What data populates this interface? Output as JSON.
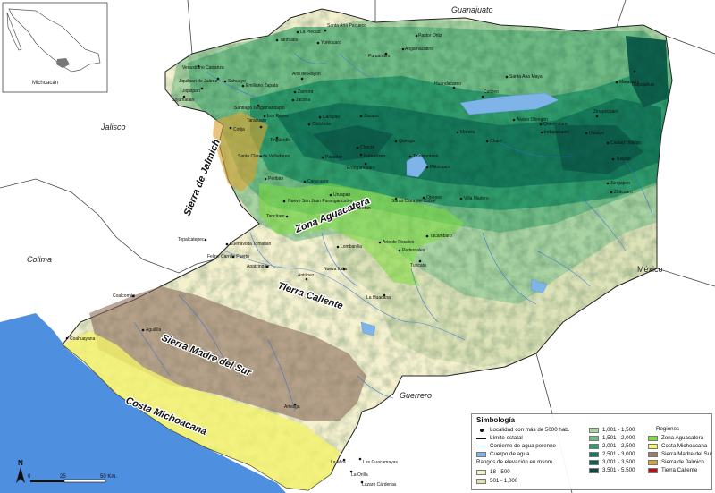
{
  "inset": {
    "label": "Michoacán"
  },
  "states": {
    "guanajuato": "Guanajuato",
    "jalisco": "Jalisco",
    "colima": "Colima",
    "guerrero": "Guerrero",
    "mexico": "México"
  },
  "regions": {
    "jalmich": "Sierra de Jalmich",
    "aguacatera": "Zona Aguacatera",
    "tierra_caliente": "Tierra Caliente",
    "madre_sur": "Sierra Madre del Sur",
    "costa": "Costa Michoacana"
  },
  "towns": [
    "La Piedad",
    "Santa Ana Pacueco",
    "Pastor Ortiz",
    "Tanhuato",
    "Yurécuaro",
    "Angamacutiro",
    "Venustiano Carranza",
    "Jiquilpan de Juárez",
    "Sahuayo",
    "Jiquilpan",
    "Cojumatlán",
    "Puruándiro",
    "Maravatío",
    "Tlalpujahua",
    "Emiliano Zapata",
    "Ario de Rayón",
    "Zamora",
    "Jacona",
    "Santiago Tangamandapio",
    "Los Reyes",
    "Tingüindín",
    "Taracuato",
    "Cotija",
    "Carapan",
    "Chilchota",
    "Zacapu",
    "Cuitzeo",
    "Santa Ana Maya",
    "Huandacareo",
    "Morelia",
    "Quiroga",
    "Álvaro Obregón",
    "Queréndaro",
    "Indaparapeo",
    "Hidalgo",
    "Zinapécuaro",
    "Ciudad Hidalgo",
    "Tuxpan",
    "Zitácuaro",
    "Jungapeo",
    "Charo",
    "Santa Clara de Valladares",
    "Paracho",
    "Cherán",
    "Nahuatzen",
    "Pátzcuaro",
    "Tzintzuntzan",
    "Erongarícuaro",
    "Peribán",
    "Caracuaro",
    "Nuevo San Juan Parangaricutiro",
    "Uruapan",
    "Taretan",
    "Santa Clara del Cobre",
    "Opopeo",
    "Villa Madero",
    "Tancítaro",
    "Ario de Rosales",
    "Tacámbaro",
    "Turicato",
    "Pedernales",
    "Tepalcatepec",
    "Buenavista Tomatlán",
    "Felipe Carrillo Puerto",
    "Apatzingán",
    "Lombardía",
    "Nueva Italia",
    "Antúnez",
    "La Huacana",
    "Coalcomán",
    "Aguililla",
    "Coahuayana",
    "Arteaga",
    "La Mira",
    "Las Guacamayas",
    "La Orilla",
    "Lázaro Cárdenas"
  ],
  "legend": {
    "title": "Simbología",
    "symbols": [
      "Localidad con más de 5000 hab.",
      "Límite estatal",
      "Corriente de agua perenne",
      "Cuerpo de agua"
    ],
    "elev_title": "Rangos de elevación en msnm",
    "elevation_ranges": [
      {
        "label": "18 - 500",
        "color": "#f5f1cf"
      },
      {
        "label": "501 - 1,000",
        "color": "#dde2b8"
      },
      {
        "label": "1,001 - 1,500",
        "color": "#a9d3a3"
      },
      {
        "label": "1,501 - 2,000",
        "color": "#6fba85"
      },
      {
        "label": "2,001 - 2,500",
        "color": "#2f9a6b"
      },
      {
        "label": "2,501 - 3,000",
        "color": "#16785a"
      },
      {
        "label": "3,001 - 3,500",
        "color": "#0e5e4c"
      },
      {
        "label": "3,501 - 5,500",
        "color": "#0a4a43"
      }
    ],
    "regions_title": "Regiones",
    "regions": [
      {
        "label": "Zona Aguacatera",
        "color": "#7ddc3c"
      },
      {
        "label": "Costa Michoacana",
        "color": "#f4f26a"
      },
      {
        "label": "Sierra Madre del Sur",
        "color": "#9c7b6a"
      },
      {
        "label": "Sierra de Jalmich",
        "color": "#d9a234"
      },
      {
        "label": "Tierra Caliente",
        "color": "#b0141a"
      }
    ]
  },
  "scale": {
    "north": "N",
    "labels": [
      "0",
      "25",
      "50 Km."
    ]
  }
}
